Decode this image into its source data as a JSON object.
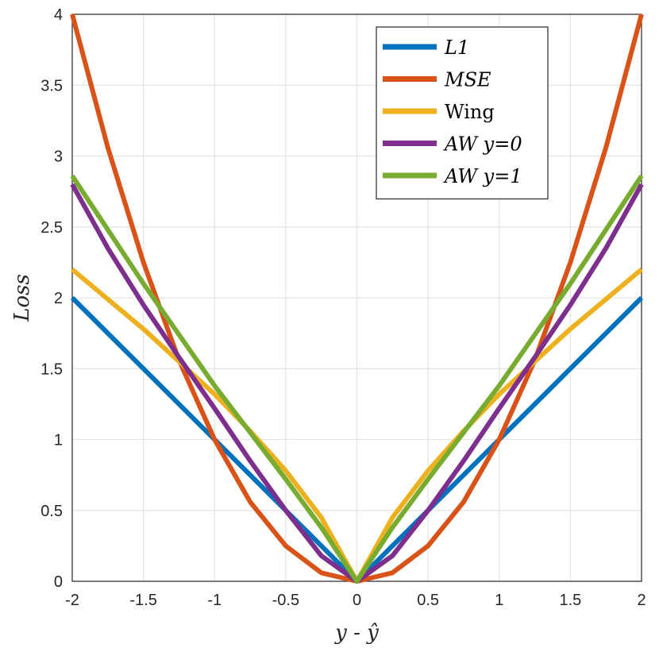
{
  "chart_data": {
    "type": "line",
    "xlabel": "y - ŷ",
    "ylabel": "Loss",
    "xlim": [
      -2,
      2
    ],
    "ylim": [
      0,
      4
    ],
    "xticks": [
      -2,
      -1.5,
      -1,
      -0.5,
      0,
      0.5,
      1,
      1.5,
      2
    ],
    "xtick_labels": [
      "-2",
      "-1.5",
      "-1",
      "-0.5",
      "0",
      "0.5",
      "1",
      "1.5",
      "2"
    ],
    "yticks": [
      0,
      0.5,
      1,
      1.5,
      2,
      2.5,
      3,
      3.5,
      4
    ],
    "ytick_labels": [
      "0",
      "0.5",
      "1",
      "1.5",
      "2",
      "2.5",
      "3",
      "3.5",
      "4"
    ],
    "grid": true,
    "legend_position": "top-right",
    "series": [
      {
        "name": "L1",
        "color": "#0072BD",
        "italic": true,
        "x": [
          -2,
          -1.5,
          -1,
          -0.5,
          0,
          0.5,
          1,
          1.5,
          2
        ],
        "y": [
          2,
          1.5,
          1,
          0.5,
          0,
          0.5,
          1,
          1.5,
          2
        ]
      },
      {
        "name": "MSE",
        "color": "#D95319",
        "italic": true,
        "x": [
          -2,
          -1.75,
          -1.5,
          -1.25,
          -1,
          -0.75,
          -0.5,
          -0.25,
          0,
          0.25,
          0.5,
          0.75,
          1,
          1.25,
          1.5,
          1.75,
          2
        ],
        "y": [
          4,
          3.06,
          2.25,
          1.56,
          1,
          0.56,
          0.25,
          0.06,
          0,
          0.06,
          0.25,
          0.56,
          1,
          1.56,
          2.25,
          3.06,
          4
        ]
      },
      {
        "name": "Wing",
        "color": "#EDB120",
        "italic": false,
        "x": [
          -2,
          -1.75,
          -1.5,
          -1.25,
          -1,
          -0.75,
          -0.5,
          -0.25,
          0,
          0.25,
          0.5,
          0.75,
          1,
          1.25,
          1.5,
          1.75,
          2
        ],
        "y": [
          2.2,
          1.99,
          1.78,
          1.55,
          1.32,
          1.06,
          0.78,
          0.45,
          0,
          0.45,
          0.78,
          1.06,
          1.32,
          1.55,
          1.78,
          1.99,
          2.2
        ]
      },
      {
        "name": "AW y=0",
        "color": "#7E2F8E",
        "italic": true,
        "x": [
          -2,
          -1.75,
          -1.5,
          -1.25,
          -1,
          -0.75,
          -0.5,
          -0.25,
          0,
          0.25,
          0.5,
          0.75,
          1,
          1.25,
          1.5,
          1.75,
          2
        ],
        "y": [
          2.8,
          2.35,
          1.95,
          1.58,
          1.22,
          0.85,
          0.5,
          0.18,
          0,
          0.18,
          0.5,
          0.85,
          1.22,
          1.58,
          1.95,
          2.35,
          2.8
        ]
      },
      {
        "name": "AW y=1",
        "color": "#77AC30",
        "italic": true,
        "x": [
          -2,
          -1.75,
          -1.5,
          -1.25,
          -1,
          -0.75,
          -0.5,
          -0.25,
          0,
          0.25,
          0.5,
          0.75,
          1,
          1.25,
          1.5,
          1.75,
          2
        ],
        "y": [
          2.86,
          2.48,
          2.1,
          1.74,
          1.38,
          1.05,
          0.72,
          0.38,
          0,
          0.38,
          0.72,
          1.05,
          1.38,
          1.74,
          2.1,
          2.48,
          2.86
        ]
      }
    ]
  }
}
